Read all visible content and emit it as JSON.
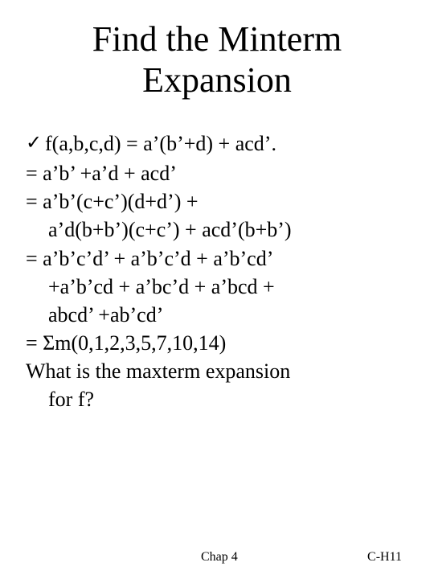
{
  "title_line1": "Find the Minterm",
  "title_line2": "Expansion",
  "check_glyph": "✓",
  "line1": "f(a,b,c,d) = a’(b’+d) + acd’.",
  "line2": "= a’b’ +a’d + acd’",
  "line3": "= a’b’(c+c’)(d+d’) +",
  "line3b": "a’d(b+b’)(c+c’) + acd’(b+b’)",
  "line4": "= a’b’c’d’ + a’b’c’d + a’b’cd’",
  "line4b": "+a’b’cd + a’bc’d + a’bcd +",
  "line4c": "abcd’ +ab’cd’",
  "line5": "= Σm(0,1,2,3,5,7,10,14)",
  "line6": "What is the maxterm expansion",
  "line6b": "for f?",
  "footer_left": "Chap 4",
  "footer_right": "C-H11",
  "colors": {
    "background": "#ffffff",
    "text": "#000000"
  },
  "fonts": {
    "title_size": 44,
    "body_size": 26,
    "footer_size": 16,
    "family": "Times New Roman"
  }
}
